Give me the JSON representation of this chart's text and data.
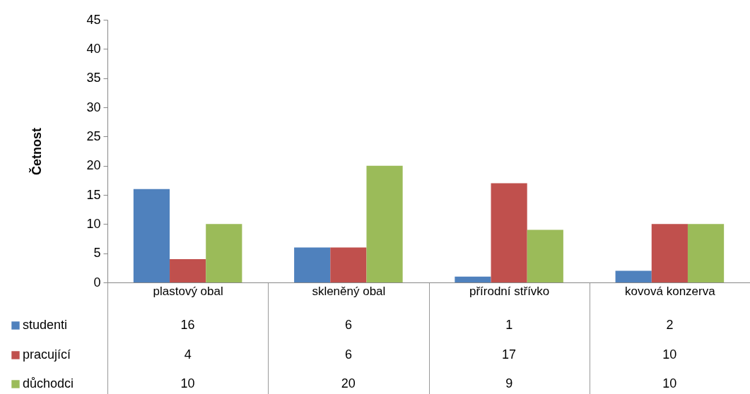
{
  "chart_data": {
    "type": "bar",
    "ylabel": "Četnost",
    "categories": [
      "plastový obal",
      "skleněný obal",
      "přírodní střívko",
      "kovová konzerva"
    ],
    "series": [
      {
        "name": "studenti",
        "color": "#4f81bd",
        "values": [
          16,
          6,
          1,
          2
        ]
      },
      {
        "name": "pracující",
        "color": "#c0504d",
        "values": [
          4,
          6,
          17,
          10
        ]
      },
      {
        "name": "důchodci",
        "color": "#9bbb59",
        "values": [
          10,
          20,
          9,
          10
        ]
      }
    ],
    "ylim": [
      0,
      45
    ],
    "yticks": [
      0,
      5,
      10,
      15,
      20,
      25,
      30,
      35,
      40,
      45
    ],
    "data_labels": true,
    "legend": "bottom left"
  }
}
